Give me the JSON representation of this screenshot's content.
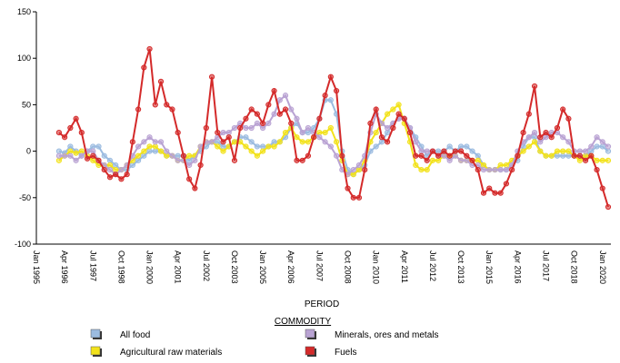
{
  "chart_data": {
    "type": "line",
    "x_label": "PERIOD",
    "legend_title": "COMMODITY",
    "categories": [
      "Jan 1995",
      null,
      null,
      null,
      null,
      "Apr 1996",
      null,
      null,
      null,
      null,
      "Jul 1997",
      null,
      null,
      null,
      null,
      "Oct 1998",
      null,
      null,
      null,
      null,
      "Jan 2000",
      null,
      null,
      null,
      null,
      "Apr 2001",
      null,
      null,
      null,
      null,
      "Jul 2002",
      null,
      null,
      null,
      null,
      "Oct 2003",
      null,
      null,
      null,
      null,
      "Jan 2005",
      null,
      null,
      null,
      null,
      "Apr 2006",
      null,
      null,
      null,
      null,
      "Jul 2007",
      null,
      null,
      null,
      null,
      "Oct 2008",
      null,
      null,
      null,
      null,
      "Jan 2010",
      null,
      null,
      null,
      null,
      "Apr 2011",
      null,
      null,
      null,
      null,
      "Jul 2012",
      null,
      null,
      null,
      null,
      "Oct 2013",
      null,
      null,
      null,
      null,
      "Jan 2015",
      null,
      null,
      null,
      null,
      "Apr 2016",
      null,
      null,
      null,
      null,
      "Jul 2017",
      null,
      null,
      null,
      null,
      "Oct 2018",
      null,
      null,
      null,
      null,
      "Jan 2020",
      null
    ],
    "ylim": [
      -100,
      150
    ],
    "yticks": [
      -100,
      -50,
      0,
      50,
      100,
      150
    ],
    "series": [
      {
        "name": "All food",
        "color": "#9bbbe0",
        "values": [
          null,
          null,
          null,
          null,
          0,
          -2,
          5,
          0,
          -5,
          0,
          5,
          5,
          -5,
          -10,
          -15,
          -20,
          -20,
          -15,
          -10,
          -5,
          0,
          0,
          0,
          -5,
          -5,
          -5,
          -5,
          -10,
          -5,
          0,
          5,
          10,
          10,
          5,
          5,
          10,
          15,
          15,
          10,
          5,
          5,
          5,
          10,
          10,
          15,
          25,
          30,
          20,
          20,
          25,
          35,
          55,
          55,
          40,
          0,
          -20,
          -25,
          -20,
          -15,
          0,
          5,
          10,
          20,
          30,
          35,
          35,
          25,
          15,
          5,
          -5,
          0,
          0,
          0,
          5,
          0,
          5,
          5,
          0,
          -5,
          -15,
          -20,
          -20,
          -20,
          -20,
          -15,
          -10,
          5,
          15,
          15,
          0,
          -5,
          -5,
          -5,
          -5,
          -5,
          -5,
          -5,
          -5,
          0,
          5,
          5,
          0
        ]
      },
      {
        "name": "Agricultural raw materials",
        "color": "#f2e21c",
        "values": [
          null,
          null,
          null,
          null,
          -10,
          -5,
          0,
          -2,
          0,
          -5,
          -10,
          -15,
          -15,
          -15,
          -20,
          -20,
          -15,
          -10,
          -5,
          0,
          5,
          5,
          0,
          -5,
          -5,
          -10,
          -10,
          -5,
          -5,
          5,
          10,
          10,
          5,
          0,
          5,
          10,
          10,
          5,
          0,
          -5,
          0,
          5,
          5,
          10,
          20,
          25,
          15,
          10,
          10,
          15,
          20,
          20,
          25,
          10,
          -10,
          -25,
          -25,
          -20,
          -10,
          10,
          20,
          30,
          40,
          45,
          50,
          30,
          10,
          -15,
          -20,
          -20,
          -10,
          -10,
          -5,
          -5,
          -5,
          -10,
          -10,
          -10,
          -10,
          -15,
          -20,
          -20,
          -15,
          -15,
          -10,
          -5,
          0,
          5,
          10,
          0,
          -5,
          -5,
          0,
          0,
          0,
          -5,
          -10,
          -5,
          -5,
          -10,
          -10,
          -10
        ]
      },
      {
        "name": "Minerals, ores and metals",
        "color": "#b9a3d3",
        "values": [
          null,
          null,
          null,
          null,
          -5,
          -5,
          -5,
          -10,
          -5,
          0,
          0,
          -10,
          -15,
          -20,
          -25,
          -20,
          -15,
          -5,
          5,
          10,
          15,
          10,
          10,
          0,
          -5,
          -10,
          -10,
          -15,
          -10,
          5,
          10,
          10,
          15,
          20,
          20,
          25,
          30,
          25,
          25,
          30,
          25,
          30,
          40,
          55,
          60,
          45,
          35,
          20,
          25,
          20,
          15,
          10,
          5,
          -5,
          -20,
          -25,
          -20,
          -15,
          -5,
          20,
          40,
          30,
          25,
          30,
          35,
          35,
          25,
          10,
          0,
          0,
          0,
          -5,
          -5,
          -10,
          -5,
          -10,
          -10,
          -15,
          -15,
          -20,
          -20,
          -20,
          -20,
          -20,
          -15,
          0,
          10,
          15,
          20,
          10,
          15,
          20,
          20,
          15,
          10,
          0,
          0,
          0,
          5,
          15,
          10,
          5
        ]
      },
      {
        "name": "Fuels",
        "color": "#d42a2a",
        "values": [
          null,
          null,
          null,
          null,
          20,
          15,
          25,
          35,
          20,
          -8,
          -5,
          -10,
          -20,
          -28,
          -25,
          -30,
          -25,
          10,
          45,
          90,
          110,
          50,
          75,
          50,
          45,
          20,
          -5,
          -30,
          -40,
          -15,
          25,
          80,
          20,
          10,
          15,
          -10,
          25,
          35,
          45,
          40,
          30,
          50,
          65,
          40,
          45,
          30,
          -10,
          -10,
          -5,
          15,
          35,
          60,
          80,
          65,
          -5,
          -40,
          -50,
          -50,
          -20,
          30,
          45,
          15,
          10,
          25,
          40,
          35,
          20,
          -5,
          -5,
          -10,
          0,
          -5,
          0,
          -5,
          0,
          0,
          -5,
          -10,
          -20,
          -45,
          -40,
          -45,
          -45,
          -35,
          -20,
          -5,
          20,
          40,
          70,
          15,
          20,
          15,
          25,
          45,
          35,
          -5,
          -5,
          -10,
          -5,
          -20,
          -40,
          -60
        ]
      }
    ]
  }
}
